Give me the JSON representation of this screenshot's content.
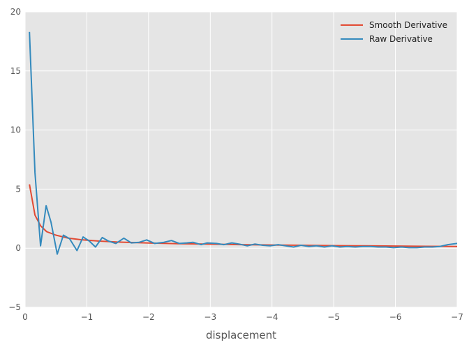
{
  "chart_data": {
    "type": "line",
    "title": "",
    "xlabel": "displacement",
    "ylabel": "",
    "xlim": [
      0,
      -7
    ],
    "ylim": [
      -5,
      20
    ],
    "x_ticks": [
      0,
      -1,
      -2,
      -3,
      -4,
      -5,
      -6,
      -7
    ],
    "x_tick_labels": [
      "0",
      "−1",
      "−2",
      "−3",
      "−4",
      "−5",
      "−6",
      "−7"
    ],
    "y_ticks": [
      -5,
      0,
      5,
      10,
      15,
      20
    ],
    "y_tick_labels": [
      "−5",
      "0",
      "5",
      "10",
      "15",
      "20"
    ],
    "grid": true,
    "legend_position": "top-right",
    "series": [
      {
        "name": "Smooth Derivative",
        "color": "#e24a33",
        "x": [
          -0.07,
          -0.16,
          -0.25,
          -0.35,
          -0.5,
          -0.7,
          -0.9,
          -1.2,
          -1.5,
          -2.0,
          -2.5,
          -3.0,
          -3.5,
          -4.0,
          -4.5,
          -5.0,
          -5.5,
          -6.0,
          -6.5,
          -7.0
        ],
        "y": [
          5.4,
          2.8,
          1.9,
          1.4,
          1.1,
          0.85,
          0.72,
          0.6,
          0.52,
          0.44,
          0.38,
          0.34,
          0.3,
          0.27,
          0.25,
          0.22,
          0.2,
          0.18,
          0.16,
          0.14
        ]
      },
      {
        "name": "Raw Derivative",
        "color": "#348abd",
        "x": [
          -0.07,
          -0.16,
          -0.25,
          -0.34,
          -0.42,
          -0.52,
          -0.62,
          -0.72,
          -0.84,
          -0.94,
          -1.04,
          -1.14,
          -1.25,
          -1.35,
          -1.47,
          -1.6,
          -1.72,
          -1.85,
          -1.97,
          -2.1,
          -2.25,
          -2.37,
          -2.5,
          -2.62,
          -2.72,
          -2.85,
          -2.95,
          -3.1,
          -3.22,
          -3.35,
          -3.47,
          -3.6,
          -3.72,
          -3.85,
          -3.97,
          -4.1,
          -4.22,
          -4.35,
          -4.47,
          -4.6,
          -4.72,
          -4.85,
          -4.97,
          -5.1,
          -5.22,
          -5.35,
          -5.47,
          -5.6,
          -5.72,
          -5.85,
          -5.97,
          -6.1,
          -6.22,
          -6.35,
          -6.47,
          -6.6,
          -6.72,
          -6.85,
          -7.0
        ],
        "y": [
          18.3,
          6.4,
          0.2,
          3.6,
          2.2,
          -0.5,
          1.1,
          0.8,
          -0.2,
          0.95,
          0.6,
          0.1,
          0.9,
          0.6,
          0.4,
          0.85,
          0.45,
          0.5,
          0.7,
          0.4,
          0.5,
          0.65,
          0.4,
          0.45,
          0.5,
          0.3,
          0.45,
          0.4,
          0.3,
          0.45,
          0.35,
          0.2,
          0.35,
          0.25,
          0.2,
          0.3,
          0.2,
          0.1,
          0.25,
          0.15,
          0.2,
          0.1,
          0.2,
          0.1,
          0.15,
          0.1,
          0.15,
          0.15,
          0.1,
          0.1,
          0.05,
          0.1,
          0.05,
          0.05,
          0.1,
          0.1,
          0.15,
          0.3,
          0.4
        ]
      }
    ]
  }
}
